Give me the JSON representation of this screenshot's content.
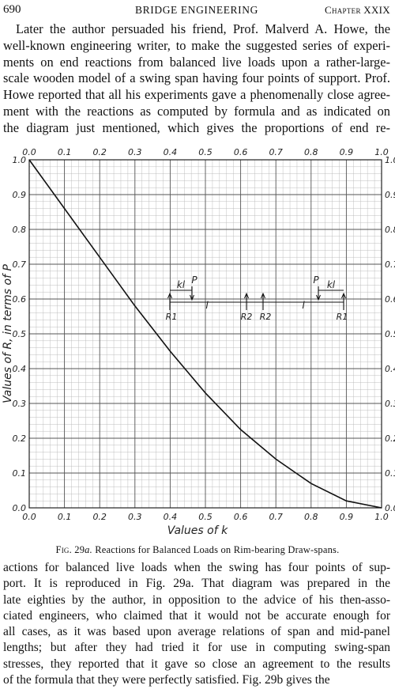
{
  "header": {
    "page_number": "690",
    "title": "BRIDGE ENGINEERING",
    "chapter": "Chapter XXIX"
  },
  "top_paragraph": {
    "lines": [
      "Later the author persuaded his friend, Prof. Malverd A. Howe, the",
      "well-known engineering writer, to make the suggested series of experi-",
      "ments on end reactions from balanced live loads upon a rather-large-",
      "scale wooden model of a swing span having four points of support. Prof.",
      "Howe reported that all his experiments gave a phenomenally close agree-",
      "ment with the reactions as computed by formula and as indicated on",
      "the diagram just mentioned, which gives the proportions of end re-"
    ]
  },
  "figure": {
    "caption_label": "Fig. 29",
    "caption_label_suffix": "a.",
    "caption_text": "Reactions for Balanced Loads on Rim-bearing Draw-spans."
  },
  "chart_data": {
    "type": "line",
    "xlabel": "Values of k",
    "ylabel": "Values of R, in terms of P",
    "xlim": [
      0.0,
      1.0
    ],
    "ylim": [
      0.0,
      1.0
    ],
    "x_ticks": [
      "0.0",
      "0.1",
      "0.2",
      "0.3",
      "0.4",
      "0.5",
      "0.6",
      "0.7",
      "0.8",
      "0.9",
      "1.0"
    ],
    "y_ticks": [
      "0.0",
      "0.1",
      "0.2",
      "0.3",
      "0.4",
      "0.5",
      "0.6",
      "0.7",
      "0.8",
      "0.9",
      "1.0"
    ],
    "grid": true,
    "series": [
      {
        "x": [
          0.0,
          0.1,
          0.2,
          0.3,
          0.4,
          0.5,
          0.6,
          0.7,
          0.8,
          0.9,
          1.0
        ],
        "y": [
          1.0,
          0.86,
          0.72,
          0.58,
          0.45,
          0.33,
          0.225,
          0.14,
          0.07,
          0.02,
          0.0
        ]
      }
    ],
    "inset_labels": {
      "kl": "kl",
      "P": "P",
      "l": "l",
      "R1": "R1",
      "R2": "R2"
    }
  },
  "bottom_paragraph": {
    "lines": [
      "actions for balanced live loads when the swing has four points of sup-",
      "port. It is reproduced in Fig. 29a. That diagram was prepared in the",
      "late eighties by the author, in opposition to the advice of his then-asso-",
      "ciated engineers, who claimed that it would not be accurate enough for",
      "all cases, as it was based upon average relations of span and mid-panel",
      "lengths; but after they had tried it for use in computing swing-span",
      "stresses, they reported that it gave so close an agreement to the results",
      "of the formula that they were perfectly satisfied. Fig. 29b gives the"
    ]
  }
}
